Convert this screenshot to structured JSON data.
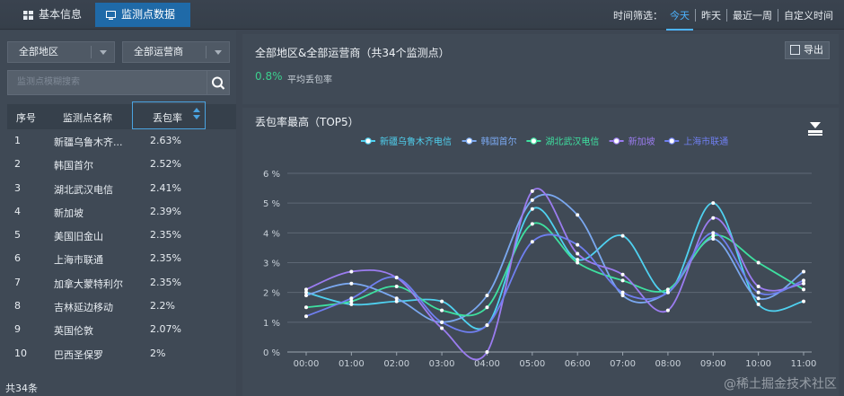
{
  "tabs": {
    "basic_label": "基本信息",
    "monitor_label": "监测点数据"
  },
  "time_filter": {
    "label": "时间筛选：",
    "options": [
      "今天",
      "昨天",
      "最近一周",
      "自定义时间"
    ],
    "selected": "今天"
  },
  "filters": {
    "region": "全部地区",
    "carrier": "全部运营商",
    "search_placeholder": "监测点模糊搜索"
  },
  "table": {
    "headers": [
      "序号",
      "监测点名称",
      "丢包率"
    ],
    "rows": [
      {
        "idx": "1",
        "name": "新疆乌鲁木齐...",
        "rate": "2.63%"
      },
      {
        "idx": "2",
        "name": "韩国首尔",
        "rate": "2.52%"
      },
      {
        "idx": "3",
        "name": "湖北武汉电信",
        "rate": "2.41%"
      },
      {
        "idx": "4",
        "name": "新加坡",
        "rate": "2.39%"
      },
      {
        "idx": "5",
        "name": "美国旧金山",
        "rate": "2.35%"
      },
      {
        "idx": "6",
        "name": "上海市联通",
        "rate": "2.35%"
      },
      {
        "idx": "7",
        "name": "加拿大蒙特利尔",
        "rate": "2.35%"
      },
      {
        "idx": "8",
        "name": "吉林延边移动",
        "rate": "2.2%"
      },
      {
        "idx": "9",
        "name": "英国伦敦",
        "rate": "2.07%"
      },
      {
        "idx": "10",
        "name": "巴西圣保罗",
        "rate": "2%"
      }
    ],
    "total": "共34条"
  },
  "summary": {
    "title": "全部地区&全部运营商（共34个监测点）",
    "value": "0.8%",
    "value_label": "平均丢包率",
    "export_label": "导出"
  },
  "chart_data": {
    "type": "line",
    "title": "丢包率最高（TOP5）",
    "x": [
      "00:00",
      "01:00",
      "02:00",
      "03:00",
      "04:00",
      "05:00",
      "06:00",
      "07:00",
      "08:00",
      "09:00",
      "10:00",
      "11:00"
    ],
    "ylim": [
      0,
      6
    ],
    "yticks": [
      "0 %",
      "1 %",
      "2 %",
      "3 %",
      "4 %",
      "5 %",
      "6 %"
    ],
    "grid": true,
    "legend_position": "top",
    "series": [
      {
        "name": "新疆乌鲁木齐电信",
        "color": "#4fd1f0",
        "values": [
          2.0,
          1.6,
          1.7,
          1.7,
          0.9,
          4.8,
          3.1,
          3.9,
          2.0,
          5.0,
          1.6,
          1.7
        ]
      },
      {
        "name": "韩国首尔",
        "color": "#7aa8f0",
        "values": [
          1.9,
          2.3,
          1.8,
          1.0,
          1.9,
          5.1,
          4.6,
          1.9,
          2.0,
          3.8,
          1.8,
          2.7
        ]
      },
      {
        "name": "湖北武汉电信",
        "color": "#3ee0a0",
        "values": [
          1.5,
          1.7,
          2.2,
          1.4,
          1.5,
          4.3,
          3.0,
          2.4,
          2.1,
          3.9,
          3.0,
          2.1
        ]
      },
      {
        "name": "新加坡",
        "color": "#9b7cf0",
        "values": [
          2.1,
          2.7,
          2.5,
          0.8,
          0.0,
          5.4,
          3.3,
          2.6,
          1.4,
          4.5,
          2.2,
          2.3
        ]
      },
      {
        "name": "上海市联通",
        "color": "#6f7ff0",
        "values": [
          1.2,
          1.8,
          2.5,
          1.0,
          0.9,
          3.7,
          3.6,
          2.0,
          2.0,
          4.0,
          2.0,
          2.4
        ]
      }
    ]
  },
  "watermark": "@稀土掘金技术社区"
}
